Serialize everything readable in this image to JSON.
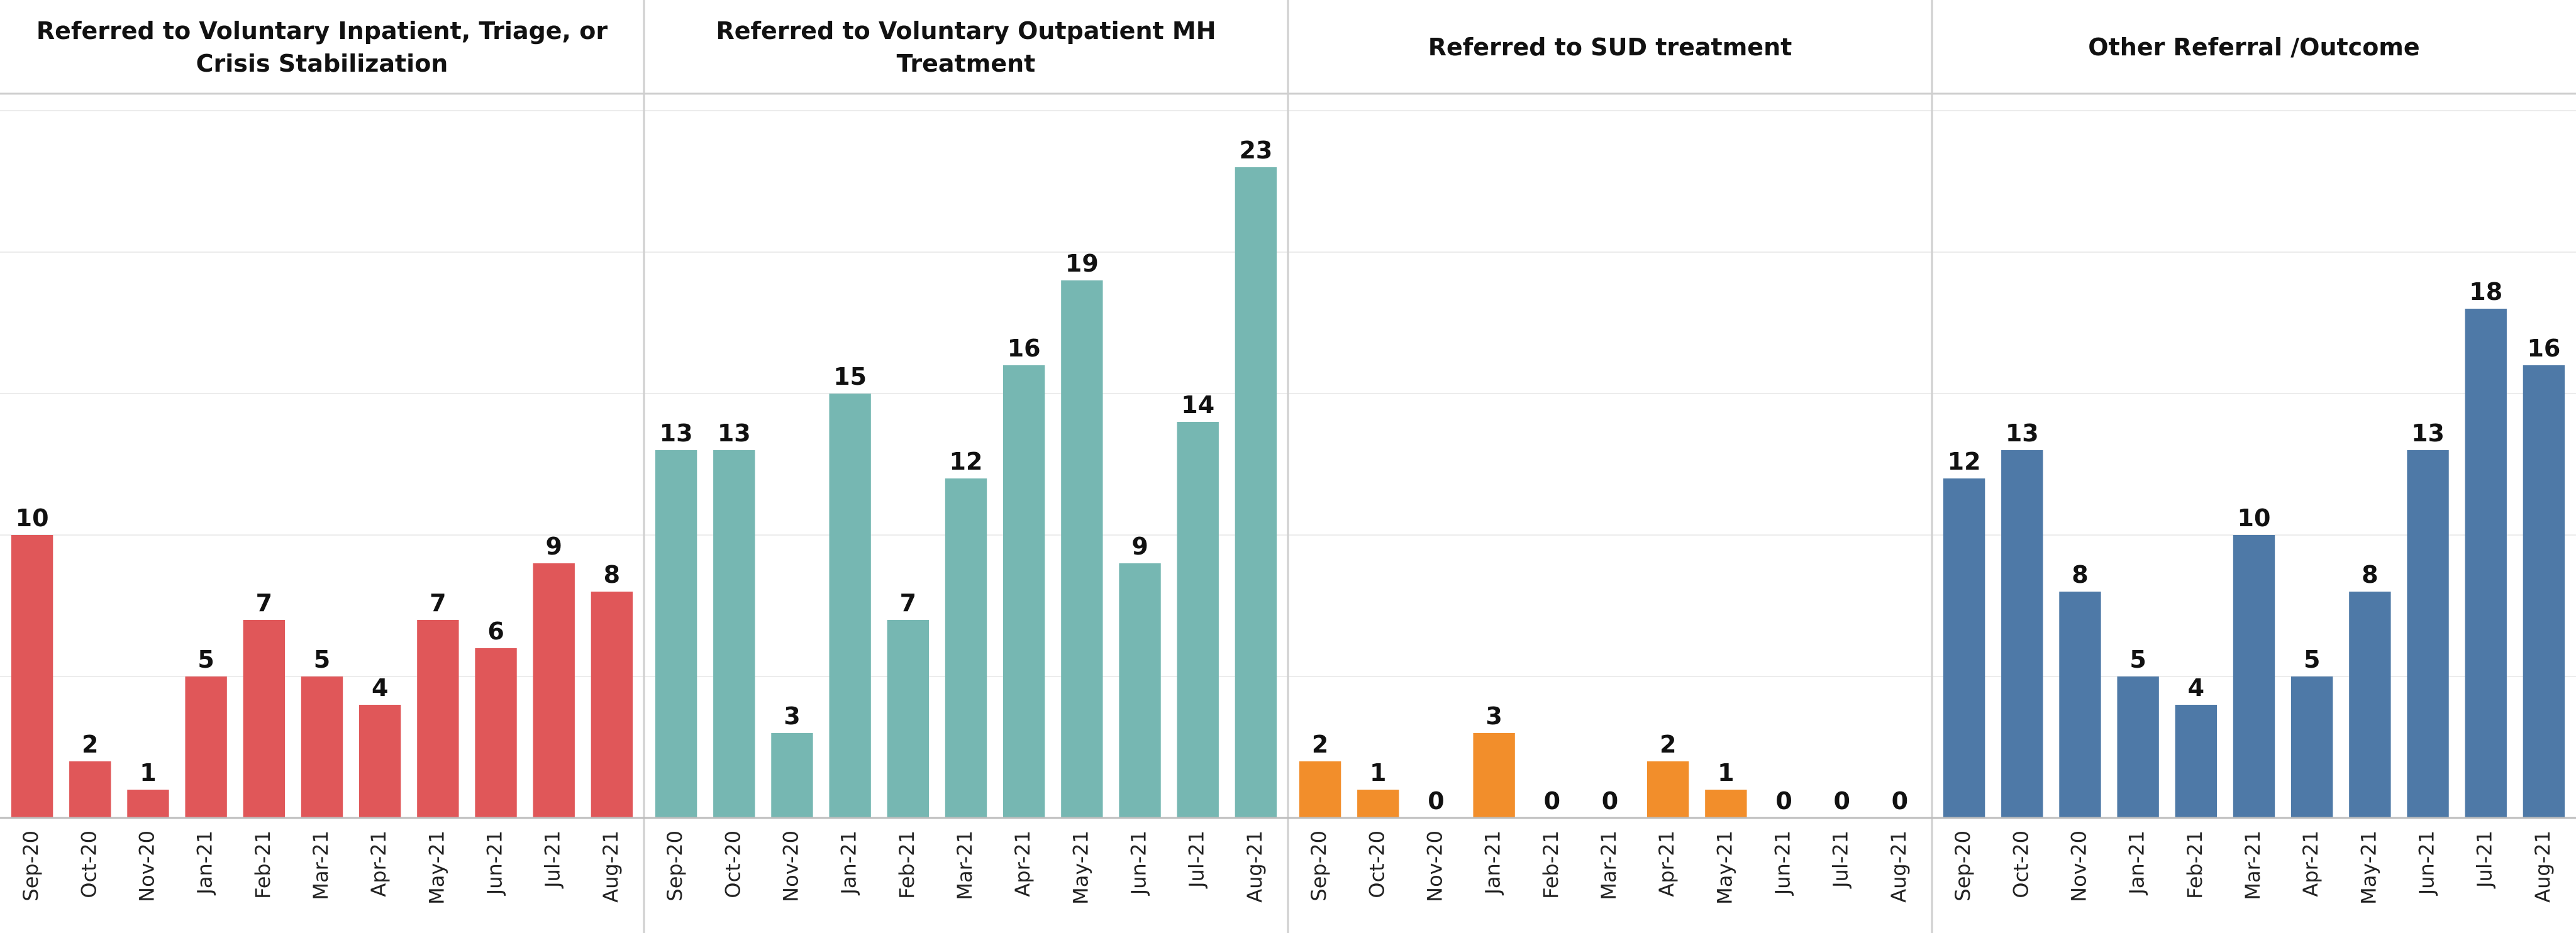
{
  "chart_data": [
    {
      "type": "bar",
      "title": "Referred to Voluntary Inpatient, Triage, or Crisis Stabilization",
      "categories": [
        "Sep-20",
        "Oct-20",
        "Nov-20",
        "Jan-21",
        "Feb-21",
        "Mar-21",
        "Apr-21",
        "May-21",
        "Jun-21",
        "Jul-21",
        "Aug-21"
      ],
      "values": [
        10,
        2,
        1,
        5,
        7,
        5,
        4,
        7,
        6,
        9,
        8
      ],
      "color": "#e05759",
      "ylim": [
        0,
        25.6
      ],
      "yticks": [
        0,
        5,
        10,
        15,
        20,
        25
      ],
      "grid": true
    },
    {
      "type": "bar",
      "title": "Referred to Voluntary Outpatient MH Treatment",
      "categories": [
        "Sep-20",
        "Oct-20",
        "Nov-20",
        "Jan-21",
        "Feb-21",
        "Mar-21",
        "Apr-21",
        "May-21",
        "Jun-21",
        "Jul-21",
        "Aug-21"
      ],
      "values": [
        13,
        13,
        3,
        15,
        7,
        12,
        16,
        19,
        9,
        14,
        23
      ],
      "color": "#76b7b2",
      "ylim": [
        0,
        25.6
      ],
      "yticks": [
        0,
        5,
        10,
        15,
        20,
        25
      ],
      "grid": true
    },
    {
      "type": "bar",
      "title": "Referred to SUD treatment",
      "categories": [
        "Sep-20",
        "Oct-20",
        "Nov-20",
        "Jan-21",
        "Feb-21",
        "Mar-21",
        "Apr-21",
        "May-21",
        "Jun-21",
        "Jul-21",
        "Aug-21"
      ],
      "values": [
        2,
        1,
        0,
        3,
        0,
        0,
        2,
        1,
        0,
        0,
        0
      ],
      "color": "#f28e2b",
      "ylim": [
        0,
        25.6
      ],
      "yticks": [
        0,
        5,
        10,
        15,
        20,
        25
      ],
      "grid": true
    },
    {
      "type": "bar",
      "title": "Other Referral /Outcome",
      "categories": [
        "Sep-20",
        "Oct-20",
        "Nov-20",
        "Jan-21",
        "Feb-21",
        "Mar-21",
        "Apr-21",
        "May-21",
        "Jun-21",
        "Jul-21",
        "Aug-21"
      ],
      "values": [
        12,
        13,
        8,
        5,
        4,
        10,
        5,
        8,
        13,
        18,
        16
      ],
      "color": "#4e79a7",
      "ylim": [
        0,
        25.6
      ],
      "yticks": [
        0,
        5,
        10,
        15,
        20,
        25
      ],
      "grid": true
    }
  ]
}
